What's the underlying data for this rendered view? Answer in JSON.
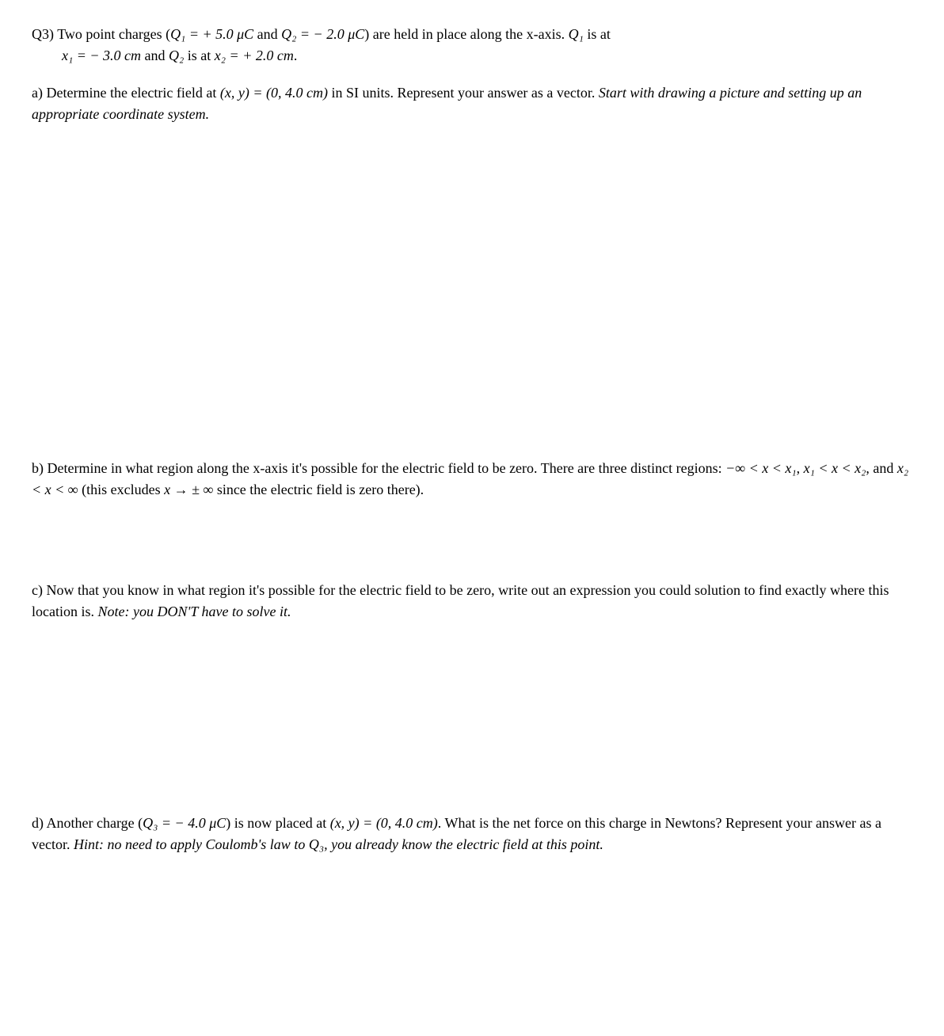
{
  "q3": {
    "label": "Q3)",
    "line1_a": "Two point charges (",
    "q1_expr": "Q₁ = + 5.0 μC",
    "line1_b": " and ",
    "q2_expr": "Q₂ = − 2.0 μC",
    "line1_c": ") are held in place along the x-axis. ",
    "q1_is": "Q₁",
    "line1_d": " is at",
    "line2_a": "x₁ = − 3.0 cm",
    "line2_b": " and ",
    "line2_c": "Q₂",
    "line2_d": " is at ",
    "line2_e": "x₂ = + 2.0 cm",
    "line2_f": "."
  },
  "a": {
    "label": "a)",
    "text1": "Determine the electric field at ",
    "coord": "(x, y) = (0, 4.0 cm)",
    "text2": " in SI units. Represent your answer as a vector. ",
    "italic": "Start with drawing a picture and setting up an appropriate coordinate system."
  },
  "b": {
    "label": "b)",
    "text1": "Determine in what region along the x-axis it's possible for the electric field to be zero. There are three distinct regions: ",
    "region1": "−∞ < x < x₁",
    "sep1": ",  ",
    "region2": "x₁ < x < x₂",
    "sep2": ", and ",
    "region3": "x₂ < x < ∞",
    "text2": " (this excludes ",
    "excl": "x → ± ∞",
    "text3": " since the electric field is zero there)."
  },
  "c": {
    "label": "c)",
    "text1": "Now that you know in what region it's possible for the electric field to be zero, write out an expression you could solution to find exactly where this location is. ",
    "italic": "Note: you DON'T have to solve it."
  },
  "d": {
    "label": "d)",
    "text1": "Another charge (",
    "q3_expr": "Q₃ = − 4.0 μC",
    "text2": ") is now placed at ",
    "coord": "(x, y) = (0, 4.0 cm)",
    "text3": ". What is the net force on this charge in Newtons? Represent your answer as a vector. ",
    "italic": "Hint: no need to apply Coulomb's law to Q₃, you already know the electric field at this point."
  }
}
